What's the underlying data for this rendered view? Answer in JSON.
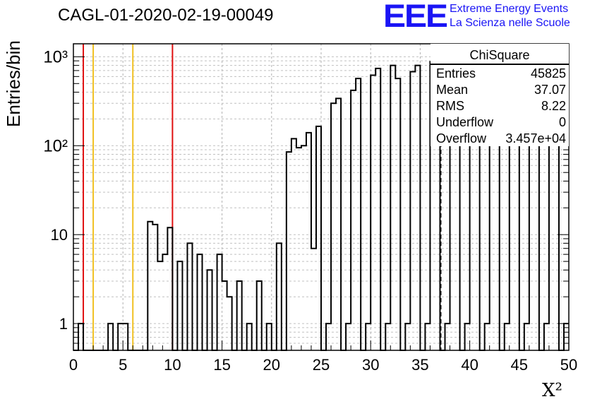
{
  "title": "CAGL-01-2020-02-19-00049",
  "logo": {
    "mark": "EEE",
    "line1": "Extreme Energy Events",
    "line2": "La Scienza nelle Scuole",
    "color": "#1a14f5"
  },
  "stats_box": {
    "title": "ChiSquare",
    "rows": [
      {
        "label": "Entries",
        "value": "45825"
      },
      {
        "label": "Mean",
        "value": "37.07"
      },
      {
        "label": "RMS",
        "value": "8.22"
      },
      {
        "label": "Underflow",
        "value": "0"
      },
      {
        "label": "Overflow",
        "value": "3.457e+04"
      }
    ]
  },
  "chart_data": {
    "type": "bar",
    "subtype": "step-histogram",
    "xlabel": "X²",
    "ylabel": "Entries/bin",
    "xlim": [
      0,
      50
    ],
    "ylim": [
      0.5,
      1400
    ],
    "yscale": "log",
    "bin_width": 0.5,
    "grid": true,
    "xticks": [
      "0",
      "5",
      "10",
      "15",
      "20",
      "25",
      "30",
      "35",
      "40",
      "45",
      "50"
    ],
    "yticks": [
      {
        "value": 1,
        "label": "1"
      },
      {
        "value": 10,
        "label": "10"
      },
      {
        "value": 100,
        "label": "10²"
      },
      {
        "value": 1000,
        "label": "10³"
      }
    ],
    "bins": [
      {
        "x": 0.5,
        "y": 1
      },
      {
        "x": 3.5,
        "y": 1
      },
      {
        "x": 4.5,
        "y": 1
      },
      {
        "x": 5.0,
        "y": 1
      },
      {
        "x": 7.5,
        "y": 14
      },
      {
        "x": 8.0,
        "y": 13
      },
      {
        "x": 8.5,
        "y": 5
      },
      {
        "x": 9.0,
        "y": 6
      },
      {
        "x": 9.5,
        "y": 12
      },
      {
        "x": 10.5,
        "y": 5
      },
      {
        "x": 11.5,
        "y": 8
      },
      {
        "x": 12.5,
        "y": 6
      },
      {
        "x": 13.5,
        "y": 4
      },
      {
        "x": 14.5,
        "y": 6
      },
      {
        "x": 15.0,
        "y": 3
      },
      {
        "x": 15.5,
        "y": 2
      },
      {
        "x": 16.5,
        "y": 3
      },
      {
        "x": 17.5,
        "y": 1
      },
      {
        "x": 18.5,
        "y": 3
      },
      {
        "x": 19.5,
        "y": 1
      },
      {
        "x": 20.5,
        "y": 8
      },
      {
        "x": 21.5,
        "y": 85
      },
      {
        "x": 22.0,
        "y": 120
      },
      {
        "x": 22.5,
        "y": 95
      },
      {
        "x": 23.0,
        "y": 100
      },
      {
        "x": 23.5,
        "y": 140
      },
      {
        "x": 24.0,
        "y": 7
      },
      {
        "x": 24.5,
        "y": 165
      },
      {
        "x": 25.5,
        "y": 1
      },
      {
        "x": 26.0,
        "y": 300
      },
      {
        "x": 26.5,
        "y": 340
      },
      {
        "x": 27.5,
        "y": 1
      },
      {
        "x": 28.0,
        "y": 420
      },
      {
        "x": 28.5,
        "y": 570
      },
      {
        "x": 29.5,
        "y": 1
      },
      {
        "x": 30.0,
        "y": 620
      },
      {
        "x": 30.5,
        "y": 740
      },
      {
        "x": 31.5,
        "y": 1
      },
      {
        "x": 32.0,
        "y": 800
      },
      {
        "x": 32.5,
        "y": 570
      },
      {
        "x": 33.5,
        "y": 1
      },
      {
        "x": 34.0,
        "y": 680
      },
      {
        "x": 34.5,
        "y": 800
      },
      {
        "x": 35.5,
        "y": 1
      },
      {
        "x": 36.0,
        "y": 880
      },
      {
        "x": 36.5,
        "y": 940
      },
      {
        "x": 37.5,
        "y": 1
      },
      {
        "x": 38.0,
        "y": 960
      },
      {
        "x": 38.5,
        "y": 1150
      },
      {
        "x": 39.5,
        "y": 1
      },
      {
        "x": 40.0,
        "y": 1100
      },
      {
        "x": 40.5,
        "y": 1000
      },
      {
        "x": 41.5,
        "y": 1
      },
      {
        "x": 42.0,
        "y": 1050
      },
      {
        "x": 42.5,
        "y": 1100
      },
      {
        "x": 43.5,
        "y": 1
      },
      {
        "x": 44.0,
        "y": 1150
      },
      {
        "x": 44.5,
        "y": 1200
      },
      {
        "x": 45.5,
        "y": 1
      },
      {
        "x": 46.0,
        "y": 1100
      },
      {
        "x": 46.5,
        "y": 1100
      },
      {
        "x": 47.5,
        "y": 1
      },
      {
        "x": 48.0,
        "y": 950
      },
      {
        "x": 48.5,
        "y": 920
      },
      {
        "x": 49.5,
        "y": 1
      }
    ],
    "reference_lines": [
      {
        "x": 1,
        "color": "#e01010"
      },
      {
        "x": 2,
        "color": "#f0c020"
      },
      {
        "x": 6,
        "color": "#f0c020"
      },
      {
        "x": 10,
        "color": "#e01010"
      }
    ],
    "mean_line": {
      "x": 37.07,
      "style": "dashed",
      "color": "#000000"
    }
  }
}
